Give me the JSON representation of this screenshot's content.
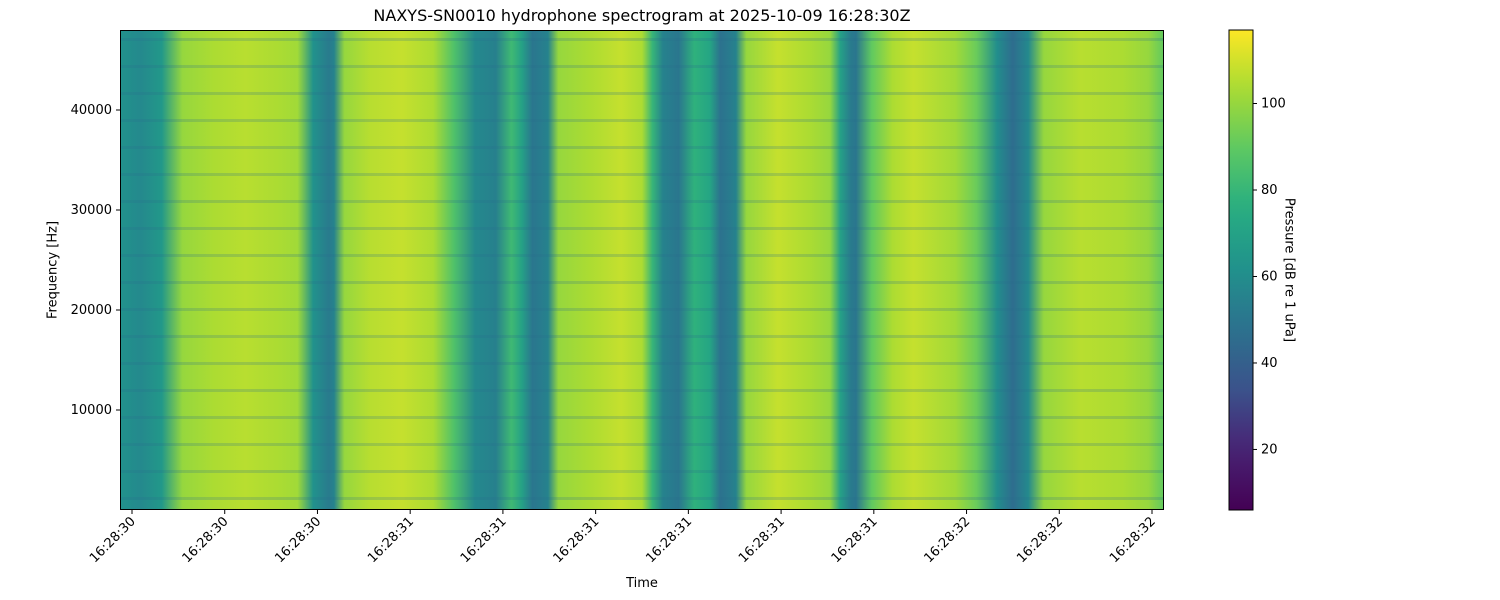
{
  "figure": {
    "title": "NAXYS-SN0010 hydrophone spectrogram at 2025-10-09 16:28:30Z",
    "xlabel": "Time",
    "ylabel": "Frequency [Hz]",
    "colorbar_label": "Pressure [dB re 1 uPa]"
  },
  "chart_data": {
    "type": "heatmap",
    "title": "NAXYS-SN0010 hydrophone spectrogram at 2025-10-09 16:28:30Z",
    "xlabel": "Time",
    "ylabel": "Frequency [Hz]",
    "colormap": "viridis",
    "x_tick_labels": [
      "16:28:30",
      "16:28:30",
      "16:28:30",
      "16:28:31",
      "16:28:31",
      "16:28:31",
      "16:28:31",
      "16:28:31",
      "16:28:31",
      "16:28:32",
      "16:28:32",
      "16:28:32"
    ],
    "y_ticks": [
      10000,
      20000,
      30000,
      40000
    ],
    "y_tick_labels": [
      "10000",
      "20000",
      "30000",
      "40000"
    ],
    "ylim": [
      0,
      48000
    ],
    "colorbar": {
      "label": "Pressure [dB re 1 uPa]",
      "range": [
        6,
        117
      ],
      "ticks": [
        20,
        40,
        60,
        80,
        100
      ],
      "tick_labels": [
        "20",
        "40",
        "60",
        "80",
        "100"
      ]
    },
    "time_columns": [
      {
        "t": 0.0,
        "db": 62
      },
      {
        "t": 0.02,
        "db": 58
      },
      {
        "t": 0.04,
        "db": 65
      },
      {
        "t": 0.06,
        "db": 100
      },
      {
        "t": 0.09,
        "db": 104
      },
      {
        "t": 0.12,
        "db": 106
      },
      {
        "t": 0.15,
        "db": 104
      },
      {
        "t": 0.17,
        "db": 102
      },
      {
        "t": 0.185,
        "db": 62
      },
      {
        "t": 0.2,
        "db": 52
      },
      {
        "t": 0.205,
        "db": 55
      },
      {
        "t": 0.215,
        "db": 100
      },
      {
        "t": 0.24,
        "db": 106
      },
      {
        "t": 0.27,
        "db": 108
      },
      {
        "t": 0.3,
        "db": 104
      },
      {
        "t": 0.32,
        "db": 86
      },
      {
        "t": 0.34,
        "db": 58
      },
      {
        "t": 0.36,
        "db": 54
      },
      {
        "t": 0.375,
        "db": 82
      },
      {
        "t": 0.385,
        "db": 70
      },
      {
        "t": 0.395,
        "db": 50
      },
      {
        "t": 0.41,
        "db": 55
      },
      {
        "t": 0.42,
        "db": 100
      },
      {
        "t": 0.45,
        "db": 104
      },
      {
        "t": 0.48,
        "db": 108
      },
      {
        "t": 0.5,
        "db": 104
      },
      {
        "t": 0.51,
        "db": 80
      },
      {
        "t": 0.52,
        "db": 55
      },
      {
        "t": 0.535,
        "db": 50
      },
      {
        "t": 0.55,
        "db": 78
      },
      {
        "t": 0.565,
        "db": 72
      },
      {
        "t": 0.575,
        "db": 48
      },
      {
        "t": 0.59,
        "db": 55
      },
      {
        "t": 0.6,
        "db": 100
      },
      {
        "t": 0.63,
        "db": 108
      },
      {
        "t": 0.66,
        "db": 104
      },
      {
        "t": 0.68,
        "db": 100
      },
      {
        "t": 0.69,
        "db": 70
      },
      {
        "t": 0.7,
        "db": 52
      },
      {
        "t": 0.705,
        "db": 50
      },
      {
        "t": 0.72,
        "db": 90
      },
      {
        "t": 0.74,
        "db": 104
      },
      {
        "t": 0.76,
        "db": 108
      },
      {
        "t": 0.8,
        "db": 102
      },
      {
        "t": 0.82,
        "db": 92
      },
      {
        "t": 0.84,
        "db": 60
      },
      {
        "t": 0.855,
        "db": 46
      },
      {
        "t": 0.87,
        "db": 58
      },
      {
        "t": 0.885,
        "db": 100
      },
      {
        "t": 0.92,
        "db": 106
      },
      {
        "t": 0.96,
        "db": 104
      },
      {
        "t": 0.985,
        "db": 100
      },
      {
        "t": 1.0,
        "db": 90
      }
    ],
    "grid": false
  }
}
